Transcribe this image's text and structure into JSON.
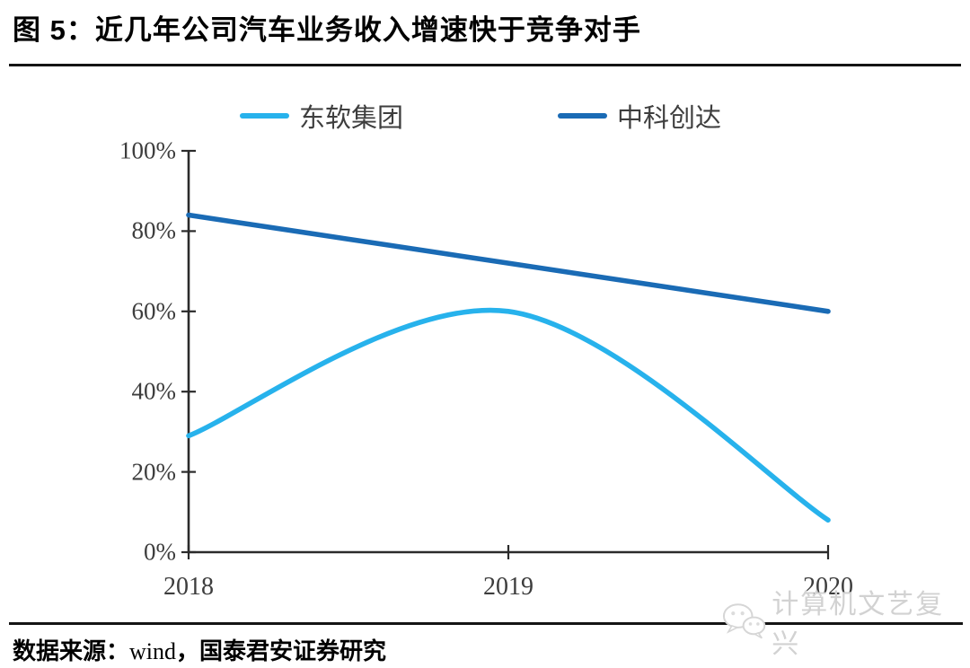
{
  "figure": {
    "title": "图 5：近几年公司汽车业务收入增速快于竞争对手",
    "source_prefix": "数据来源：",
    "source_en": "wind",
    "source_suffix": "，国泰君安证券研究",
    "watermark_text": "计算机文艺复兴",
    "watermark_icon": "wechat-icon"
  },
  "chart_data": {
    "type": "line",
    "title": "图 5：近几年公司汽车业务收入增速快于竞争对手",
    "x": [
      "2018",
      "2019",
      "2020"
    ],
    "xlabel": "",
    "ylabel": "",
    "ylim": [
      0,
      100
    ],
    "y_ticks_percent": [
      0,
      20,
      40,
      60,
      80,
      100
    ],
    "y_tick_labels": [
      "0%",
      "20%",
      "40%",
      "60%",
      "80%",
      "100%"
    ],
    "grid": false,
    "smooth": true,
    "legend_position": "top-center",
    "axis_color": "#2b2b2b",
    "series": [
      {
        "name": "东软集团",
        "color": "#27B2EC",
        "values_percent": [
          29,
          60,
          8
        ]
      },
      {
        "name": "中科创达",
        "color": "#1A6BB5",
        "values_percent": [
          84,
          72,
          60
        ]
      }
    ]
  }
}
